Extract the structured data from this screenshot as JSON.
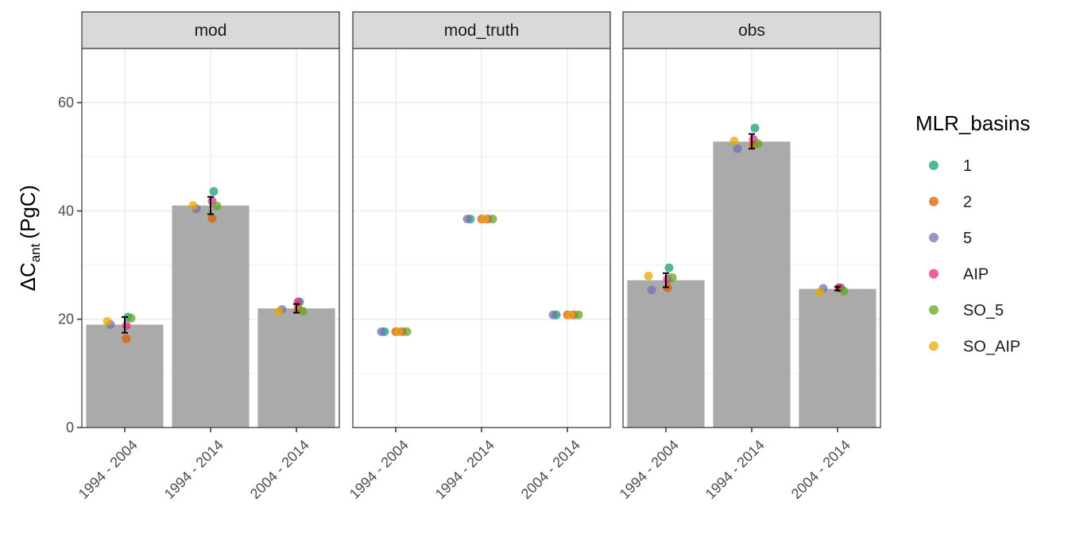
{
  "chart_data": {
    "type": "bar",
    "facets": [
      "mod",
      "mod_truth",
      "obs"
    ],
    "categories": [
      "1994 - 2004",
      "1994 - 2014",
      "2004 - 2014"
    ],
    "ylabel": {
      "base": "ΔC",
      "subscript": "ant",
      "unit": "(PgC)"
    },
    "ylim": [
      0,
      70
    ],
    "yticks": [
      0,
      20,
      40,
      60
    ],
    "grid": true,
    "legend": {
      "title": "MLR_basins",
      "placement": "right",
      "entries": [
        {
          "label": "1",
          "color": "#1b9e77"
        },
        {
          "label": "2",
          "color": "#d95f02"
        },
        {
          "label": "5",
          "color": "#7570b3"
        },
        {
          "label": "AIP",
          "color": "#e7298a"
        },
        {
          "label": "SO_5",
          "color": "#66a61e"
        },
        {
          "label": "SO_AIP",
          "color": "#e6ab02"
        }
      ]
    },
    "bar_color": "#aaaaaa",
    "bars": {
      "mod": [
        19.0,
        41.0,
        22.0
      ],
      "mod_truth": [
        0,
        0,
        0
      ],
      "obs": [
        27.2,
        52.8,
        25.6
      ]
    },
    "error_bars": {
      "mod": [
        [
          17.5,
          20.4
        ],
        [
          39.4,
          42.6
        ],
        [
          21.2,
          22.8
        ]
      ],
      "mod_truth": [
        null,
        null,
        null
      ],
      "obs": [
        [
          25.9,
          28.5
        ],
        [
          51.5,
          54.2
        ],
        [
          25.3,
          26.0
        ]
      ]
    },
    "points": {
      "mod": [
        {
          "1": 20.4,
          "2": 16.4,
          "5": 19.0,
          "AIP": 18.8,
          "SO_5": 20.2,
          "SO_AIP": 19.6
        },
        {
          "1": 43.6,
          "2": 38.6,
          "5": 40.4,
          "AIP": 41.8,
          "SO_5": 40.9,
          "SO_AIP": 41.0
        },
        {
          "1": 23.2,
          "2": 22.0,
          "5": 21.8,
          "AIP": 23.2,
          "SO_5": 21.5,
          "SO_AIP": 21.4
        }
      ],
      "mod_truth": [
        {
          "1": 17.7,
          "2": 17.7,
          "5": 17.7,
          "AIP": 17.7,
          "SO_5": 17.7,
          "SO_AIP": 17.7
        },
        {
          "1": 38.5,
          "2": 38.5,
          "5": 38.5,
          "AIP": 38.5,
          "SO_5": 38.5,
          "SO_AIP": 38.5
        },
        {
          "1": 20.8,
          "2": 20.8,
          "5": 20.8,
          "AIP": 20.8,
          "SO_5": 20.8,
          "SO_AIP": 20.8
        }
      ],
      "obs": [
        {
          "1": 29.5,
          "2": 25.8,
          "5": 25.4,
          "AIP": 27.4,
          "SO_5": 27.7,
          "SO_AIP": 28.0
        },
        {
          "1": 55.3,
          "2": 52.2,
          "5": 51.5,
          "AIP": 53.2,
          "SO_5": 52.4,
          "SO_AIP": 52.9
        },
        {
          "1": 25.8,
          "2": 25.8,
          "5": 25.7,
          "AIP": 25.8,
          "SO_5": 25.2,
          "SO_AIP": 25.0
        }
      ]
    }
  }
}
